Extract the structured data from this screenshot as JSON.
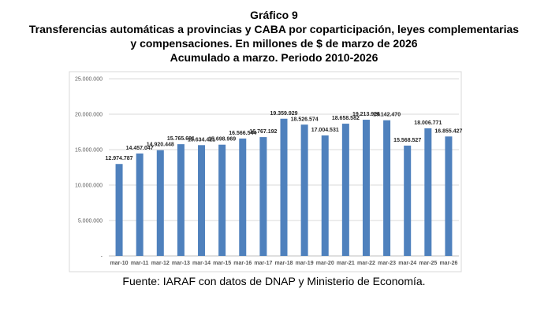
{
  "title_lines": [
    "Gráfico 9",
    "Transferencias automáticas a provincias y CABA por coparticipación, leyes complementarias",
    "y compensaciones.  En millones de $ de marzo de 2026",
    "Acumulado a marzo. Periodo 2010-2026"
  ],
  "source": "Fuente: IARAF con datos de DNAP y Ministerio de Economía.",
  "colors": {
    "bar": "#4F81BD",
    "grid": "#D9D9D9",
    "frame": "#D9D9D9"
  },
  "chart_data": {
    "type": "bar",
    "categories": [
      "mar-10",
      "mar-11",
      "mar-12",
      "mar-13",
      "mar-14",
      "mar-15",
      "mar-16",
      "mar-17",
      "mar-18",
      "mar-19",
      "mar-20",
      "mar-21",
      "mar-22",
      "mar-23",
      "mar-24",
      "mar-25",
      "mar-26"
    ],
    "values": [
      12974787,
      14457047,
      14920448,
      15765681,
      15634421,
      15698969,
      16566544,
      16767192,
      19359929,
      18526574,
      17004531,
      18658582,
      19213926,
      19142470,
      15568527,
      18006771,
      16855427
    ],
    "data_labels": [
      "12.974.787",
      "14.457.047",
      "14.920.448",
      "15.765.681",
      "15.634.421",
      "15.698.969",
      "16.566.544",
      "16.767.192",
      "19.359.929",
      "18.526.574",
      "17.004.531",
      "18.658.582",
      "19.213.926",
      "19.142.470",
      "15.568.527",
      "18.006.771",
      "16.855.427"
    ],
    "ylim": [
      0,
      25000000
    ],
    "yticks": [
      0,
      5000000,
      10000000,
      15000000,
      20000000,
      25000000
    ],
    "ytick_labels": [
      "-",
      "5.000.000",
      "10.000.000",
      "15.000.000",
      "20.000.000",
      "25.000.000"
    ],
    "grid": true,
    "legend": "none"
  }
}
